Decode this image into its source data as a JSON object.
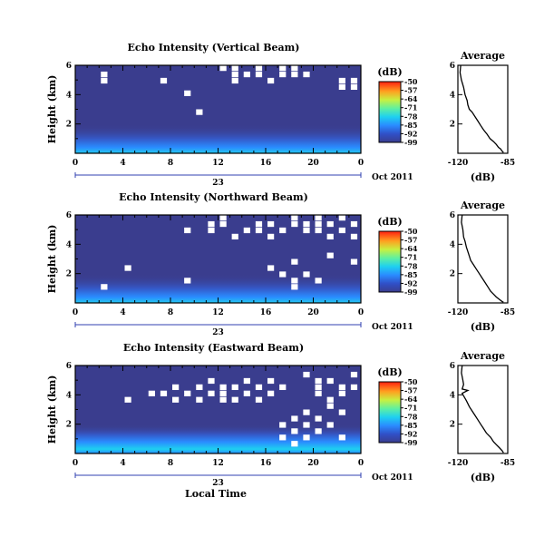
{
  "chart_data": [
    {
      "type": "heatmap",
      "title": "Echo Intensity (Vertical Beam)",
      "ylabel": "Height (km)",
      "y_ticks": [
        "6",
        "4",
        "2"
      ],
      "x_ticks": [
        "0",
        "4",
        "8",
        "12",
        "16",
        "20",
        "0"
      ],
      "date_label": "23",
      "month_year": "Oct 2011",
      "xlim": [
        0,
        24
      ],
      "ylim": [
        0,
        6
      ],
      "colorbar_unit": "(dB)",
      "colorbar_ticks": [
        "-50",
        "-57",
        "-64",
        "-71",
        "-78",
        "-85",
        "-92",
        "-99"
      ],
      "background_level_db": -99,
      "surface_layer_db": -80,
      "data_gap_cells": [
        [
          2,
          12
        ],
        [
          2,
          11
        ],
        [
          7,
          11
        ],
        [
          9,
          9
        ],
        [
          10,
          6
        ],
        [
          12,
          13
        ],
        [
          13,
          13
        ],
        [
          13,
          12
        ],
        [
          13,
          11
        ],
        [
          14,
          12
        ],
        [
          15,
          13
        ],
        [
          15,
          12
        ],
        [
          16,
          11
        ],
        [
          18,
          12
        ],
        [
          17,
          12
        ],
        [
          17,
          13
        ],
        [
          18,
          13
        ],
        [
          19,
          12
        ],
        [
          22,
          11
        ],
        [
          22,
          10
        ],
        [
          23,
          11
        ],
        [
          23,
          10
        ]
      ]
    },
    {
      "type": "line",
      "title": "Average",
      "xlabel": "(dB)",
      "x_ticks": [
        "-120",
        "-85"
      ],
      "y_ticks": [
        "6",
        "4",
        "2"
      ],
      "xlim": [
        -120,
        -85
      ],
      "ylim": [
        0,
        6
      ],
      "x": [
        -118,
        -118.5,
        -117.5,
        -116,
        -115,
        -113.5,
        -113,
        -112,
        -110,
        -108,
        -106,
        -104,
        -102,
        -99.5,
        -97.5,
        -95,
        -93,
        -91.5,
        -90,
        -89,
        -88
      ],
      "y": [
        6.0,
        5.5,
        5.0,
        4.5,
        4.0,
        3.6,
        3.3,
        3.0,
        2.8,
        2.5,
        2.2,
        1.9,
        1.6,
        1.3,
        1.0,
        0.8,
        0.6,
        0.4,
        0.3,
        0.15,
        0.05
      ]
    },
    {
      "type": "heatmap",
      "title": "Echo Intensity (Northward Beam)",
      "ylabel": "Height (km)",
      "y_ticks": [
        "6",
        "4",
        "2"
      ],
      "x_ticks": [
        "0",
        "4",
        "8",
        "12",
        "16",
        "20",
        "0"
      ],
      "date_label": "23",
      "month_year": "Oct 2011",
      "xlim": [
        0,
        24
      ],
      "ylim": [
        0,
        6
      ],
      "colorbar_unit": "(dB)",
      "colorbar_ticks": [
        "-50",
        "-57",
        "-64",
        "-71",
        "-78",
        "-85",
        "-92",
        "-99"
      ],
      "background_level_db": -99,
      "surface_layer_db": -80,
      "data_gap_cells": [
        [
          9,
          11
        ],
        [
          11,
          12
        ],
        [
          11,
          11
        ],
        [
          12,
          13
        ],
        [
          12,
          12
        ],
        [
          13,
          10
        ],
        [
          14,
          11
        ],
        [
          15,
          12
        ],
        [
          15,
          11
        ],
        [
          16,
          12
        ],
        [
          16,
          10
        ],
        [
          17,
          11
        ],
        [
          18,
          12
        ],
        [
          18,
          13
        ],
        [
          19,
          12
        ],
        [
          19,
          11
        ],
        [
          20,
          13
        ],
        [
          20,
          12
        ],
        [
          20,
          11
        ],
        [
          21,
          12
        ],
        [
          21,
          10
        ],
        [
          22,
          13
        ],
        [
          22,
          11
        ],
        [
          23,
          12
        ],
        [
          23,
          10
        ],
        [
          17,
          4
        ],
        [
          18,
          3
        ],
        [
          18,
          2
        ],
        [
          19,
          4
        ],
        [
          20,
          3
        ],
        [
          18,
          6
        ],
        [
          16,
          5
        ],
        [
          21,
          7
        ],
        [
          23,
          6
        ],
        [
          2,
          2
        ],
        [
          4,
          5
        ],
        [
          9,
          3
        ]
      ]
    },
    {
      "type": "line",
      "title": "Average",
      "xlabel": "(dB)",
      "x_ticks": [
        "-120",
        "-85"
      ],
      "y_ticks": [
        "6",
        "4",
        "2"
      ],
      "xlim": [
        -120,
        -85
      ],
      "ylim": [
        0,
        6
      ],
      "x": [
        -117,
        -117.5,
        -116.5,
        -116,
        -115,
        -114,
        -113,
        -112,
        -111,
        -109,
        -107,
        -105,
        -103,
        -101,
        -99,
        -97,
        -95,
        -93,
        -91,
        -89,
        -88
      ],
      "y": [
        6.0,
        5.5,
        5.0,
        4.5,
        4.2,
        3.8,
        3.5,
        3.2,
        2.9,
        2.6,
        2.3,
        2.0,
        1.7,
        1.4,
        1.1,
        0.8,
        0.6,
        0.4,
        0.25,
        0.1,
        0.05
      ]
    },
    {
      "type": "heatmap",
      "title": "Echo Intensity (Eastward Beam)",
      "ylabel": "Height (km)",
      "y_ticks": [
        "6",
        "4",
        "2"
      ],
      "x_ticks": [
        "0",
        "4",
        "8",
        "12",
        "16",
        "20",
        "0"
      ],
      "date_label": "23",
      "month_year": "Oct 2011",
      "xlabel": "Local Time",
      "xlim": [
        0,
        24
      ],
      "ylim": [
        0,
        6
      ],
      "colorbar_unit": "(dB)",
      "colorbar_ticks": [
        "-50",
        "-57",
        "-64",
        "-71",
        "-78",
        "-85",
        "-92",
        "-99"
      ],
      "background_level_db": -99,
      "surface_layer_db": -75,
      "data_gap_cells": [
        [
          4,
          8
        ],
        [
          6,
          9
        ],
        [
          7,
          9
        ],
        [
          8,
          10
        ],
        [
          8,
          8
        ],
        [
          9,
          9
        ],
        [
          10,
          10
        ],
        [
          10,
          8
        ],
        [
          11,
          9
        ],
        [
          11,
          11
        ],
        [
          12,
          10
        ],
        [
          12,
          9
        ],
        [
          12,
          8
        ],
        [
          13,
          10
        ],
        [
          13,
          8
        ],
        [
          14,
          9
        ],
        [
          14,
          11
        ],
        [
          15,
          10
        ],
        [
          15,
          8
        ],
        [
          16,
          9
        ],
        [
          16,
          11
        ],
        [
          17,
          10
        ],
        [
          19,
          12
        ],
        [
          20,
          11
        ],
        [
          20,
          10
        ],
        [
          20,
          9
        ],
        [
          21,
          11
        ],
        [
          21,
          8
        ],
        [
          22,
          10
        ],
        [
          22,
          9
        ],
        [
          23,
          12
        ],
        [
          23,
          10
        ],
        [
          17,
          4
        ],
        [
          17,
          2
        ],
        [
          18,
          5
        ],
        [
          18,
          3
        ],
        [
          18,
          1
        ],
        [
          19,
          6
        ],
        [
          19,
          4
        ],
        [
          19,
          2
        ],
        [
          20,
          5
        ],
        [
          20,
          3
        ],
        [
          21,
          7
        ],
        [
          21,
          4
        ],
        [
          22,
          6
        ],
        [
          22,
          2
        ]
      ]
    },
    {
      "type": "line",
      "title": "Average",
      "xlabel": "(dB)",
      "x_ticks": [
        "-120",
        "-85"
      ],
      "y_ticks": [
        "6",
        "4",
        "2"
      ],
      "xlim": [
        -120,
        -85
      ],
      "ylim": [
        0,
        6
      ],
      "x": [
        -117,
        -117.5,
        -116.5,
        -116,
        -117,
        -113,
        -117,
        -114,
        -112,
        -110,
        -108,
        -106,
        -104,
        -102,
        -100,
        -97,
        -95,
        -93,
        -91,
        -89,
        -88
      ],
      "y": [
        6.0,
        5.5,
        5.0,
        4.7,
        4.4,
        4.3,
        4.1,
        3.6,
        3.2,
        2.9,
        2.6,
        2.3,
        2.0,
        1.7,
        1.4,
        1.1,
        0.8,
        0.6,
        0.4,
        0.2,
        0.05
      ]
    }
  ]
}
